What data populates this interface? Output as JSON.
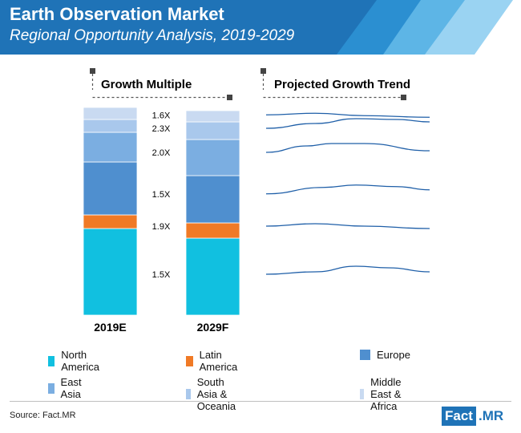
{
  "header": {
    "title": "Earth Observation Market",
    "subtitle": "Regional Opportunity Analysis, 2019-2029"
  },
  "panels": {
    "left_title": "Growth Multiple",
    "right_title": "Projected Growth Trend"
  },
  "colors": {
    "header_blue": "#1f73b7",
    "stripe_1": "#2b8fd1",
    "stripe_2": "#5db5e6",
    "stripe_3": "#9ad3f2",
    "trend_line": "#1f5fa8"
  },
  "chart_data": {
    "type": "bar",
    "stacked": true,
    "categories": [
      "2019E",
      "2029F"
    ],
    "series": [
      {
        "name": "North America",
        "color": "#11c0e0",
        "values": [
          108,
          96
        ],
        "growth_multiple": "1.5X"
      },
      {
        "name": "Latin America",
        "color": "#f07a26",
        "values": [
          17,
          19
        ],
        "growth_multiple": "1.9X"
      },
      {
        "name": "Europe",
        "color": "#4f8fcf",
        "values": [
          66,
          59
        ],
        "growth_multiple": "1.5X"
      },
      {
        "name": "East Asia",
        "color": "#7baee1",
        "values": [
          37,
          45
        ],
        "growth_multiple": "2.0X"
      },
      {
        "name": "South Asia & Oceania",
        "color": "#a9c8ec",
        "values": [
          16,
          22
        ],
        "growth_multiple": "2.3X"
      },
      {
        "name": "Middle East & Africa",
        "color": "#c9daf1",
        "values": [
          15,
          14
        ],
        "growth_multiple": "1.6X"
      }
    ],
    "ylim": [
      0,
      259
    ],
    "legend_position": "bottom",
    "grid": false
  },
  "footer": {
    "source": "Source: Fact.MR",
    "logo_left": "Fact",
    "logo_right": ".MR"
  }
}
